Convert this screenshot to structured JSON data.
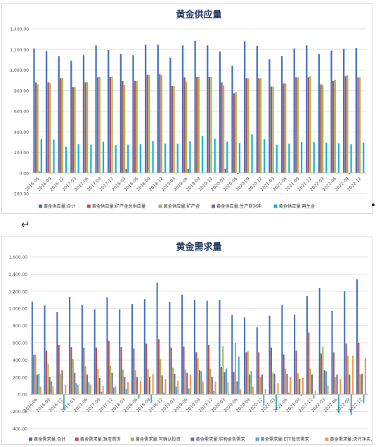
{
  "separator_glyph": "↵",
  "chart_data": [
    {
      "type": "bar",
      "title": "黄金供应量",
      "xlabel": "",
      "ylabel": "",
      "ylim": [
        -200,
        1400
      ],
      "ytick_values": [
        -200,
        0,
        200,
        400,
        600,
        800,
        1000,
        1200,
        1400
      ],
      "ytick_labels": [
        "-200.00",
        "0.00",
        "200.00",
        "400.00",
        "600.00",
        "800.00",
        "1,000.00",
        "1,200.00",
        "1,400.00"
      ],
      "grid": true,
      "legend_position": "bottom",
      "categories": [
        "2016-06",
        "2016-09",
        "2016-12",
        "2017-03",
        "2017-06",
        "2017-09",
        "2017-12",
        "2018-03",
        "2018-06",
        "2018-09",
        "2018-12",
        "2019-03",
        "2019-06",
        "2019-09",
        "2019-12",
        "2020-03",
        "2020-06",
        "2020-09",
        "2020-12",
        "2021-03",
        "2021-06",
        "2021-09",
        "2021-12",
        "2022-03",
        "2022-06",
        "2022-09",
        "2022-12"
      ],
      "series": [
        {
          "name": "黄金供应量:合计",
          "color": "#4472c4",
          "values": [
            1210,
            1185,
            1135,
            1090,
            1145,
            1240,
            1195,
            1155,
            1145,
            1245,
            1245,
            1120,
            1240,
            1285,
            1240,
            1180,
            1040,
            1280,
            1235,
            1105,
            1135,
            1210,
            1240,
            1155,
            1190,
            1205,
            1215
          ]
        },
        {
          "name": "黄金供应量:矿产金总供应量",
          "color": "#c0504d",
          "values": [
            880,
            880,
            920,
            835,
            880,
            930,
            935,
            895,
            895,
            955,
            960,
            845,
            930,
            935,
            935,
            880,
            775,
            920,
            920,
            840,
            870,
            930,
            930,
            860,
            895,
            940,
            930
          ]
        },
        {
          "name": "黄金供应量:矿产金",
          "color": "#9bbb59",
          "values": [
            860,
            875,
            920,
            835,
            880,
            935,
            935,
            855,
            895,
            955,
            950,
            845,
            885,
            935,
            935,
            850,
            785,
            920,
            920,
            840,
            870,
            930,
            940,
            855,
            905,
            950,
            930
          ]
        },
        {
          "name": "黄金供应量:生产商对冲",
          "color": "#8064a2",
          "values": [
            15,
            -5,
            0,
            0,
            0,
            0,
            0,
            40,
            0,
            0,
            10,
            0,
            40,
            0,
            0,
            40,
            -10,
            0,
            0,
            0,
            0,
            0,
            0,
            5,
            -5,
            -10,
            0
          ]
        },
        {
          "name": "黄金供应量:再生金",
          "color": "#1ab0e3",
          "values": [
            330,
            325,
            255,
            280,
            275,
            305,
            270,
            275,
            280,
            310,
            285,
            285,
            310,
            360,
            335,
            305,
            290,
            375,
            330,
            275,
            285,
            300,
            300,
            295,
            290,
            280,
            295
          ]
        }
      ]
    },
    {
      "type": "bar",
      "title": "黄金需求量",
      "xlabel": "",
      "ylabel": "",
      "ylim": [
        -400,
        1600
      ],
      "ytick_values": [
        -400,
        -200,
        0,
        200,
        400,
        600,
        800,
        1000,
        1200,
        1400,
        1600
      ],
      "ytick_labels": [
        "-400.00",
        "-200.00",
        "0.00",
        "200.00",
        "400.00",
        "600.00",
        "800.00",
        "1,000.00",
        "1,200.00",
        "1,400.00",
        "1,600.00"
      ],
      "grid": true,
      "legend_position": "bottom",
      "categories": [
        "2016-06",
        "2016-09",
        "2016-12",
        "2017-03",
        "2017-06",
        "2017-09",
        "2017-12",
        "2018-03",
        "2018-06",
        "2018-09",
        "2018-12",
        "2019-03",
        "2019-06",
        "2019-09",
        "2019-12",
        "2020-03",
        "2020-06",
        "2020-09",
        "2020-12",
        "2021-03",
        "2021-06",
        "2021-09",
        "2021-12",
        "2022-03",
        "2022-06",
        "2022-09",
        "2022-12"
      ],
      "series": [
        {
          "name": "黄金需求量:合计",
          "color": "#4472c4",
          "values": [
            1080,
            1035,
            960,
            1135,
            1040,
            990,
            1130,
            990,
            1050,
            1110,
            1300,
            1075,
            1160,
            1100,
            1090,
            1100,
            925,
            895,
            780,
            915,
            1040,
            930,
            1145,
            1240,
            970,
            1200,
            1340
          ]
        },
        {
          "name": "黄金需求量:珠宝首饰",
          "color": "#c0504d",
          "values": [
            460,
            510,
            575,
            550,
            545,
            545,
            625,
            550,
            535,
            590,
            640,
            545,
            555,
            490,
            575,
            320,
            260,
            490,
            490,
            545,
            465,
            510,
            720,
            475,
            490,
            590,
            600
          ]
        },
        {
          "name": "黄金需求量:可确认投资",
          "color": "#9bbb59",
          "values": [
            465,
            355,
            240,
            410,
            330,
            300,
            330,
            290,
            280,
            300,
            410,
            310,
            290,
            420,
            300,
            560,
            600,
            505,
            200,
            255,
            300,
            245,
            300,
            555,
            200,
            450,
            230
          ]
        },
        {
          "name": "黄金需求量:实物金条需求",
          "color": "#8064a2",
          "values": [
            230,
            200,
            280,
            250,
            230,
            190,
            250,
            200,
            200,
            200,
            220,
            240,
            250,
            280,
            200,
            260,
            150,
            230,
            230,
            240,
            240,
            180,
            230,
            280,
            230,
            230,
            240
          ]
        },
        {
          "name": "黄金需求量:ETF投资需求",
          "color": "#4bacc6",
          "values": [
            240,
            150,
            -180,
            130,
            140,
            30,
            80,
            60,
            -50,
            -100,
            20,
            90,
            70,
            270,
            40,
            300,
            440,
            270,
            -130,
            -180,
            20,
            -20,
            -50,
            270,
            -220,
            -240,
            -100
          ]
        },
        {
          "name": "黄金需求量:央行净买入",
          "color": "#f79646",
          "values": [
            90,
            95,
            110,
            110,
            115,
            100,
            95,
            140,
            160,
            240,
            180,
            160,
            230,
            150,
            150,
            140,
            60,
            90,
            60,
            130,
            200,
            190,
            40,
            100,
            180,
            450,
            420
          ]
        }
      ]
    }
  ]
}
